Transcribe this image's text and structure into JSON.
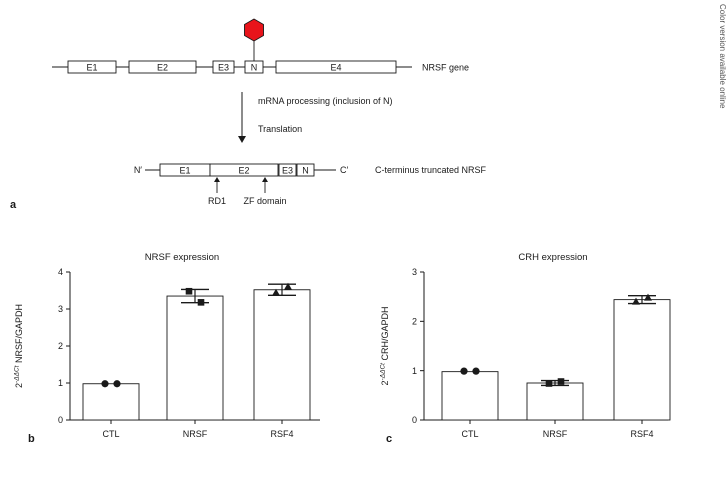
{
  "side_note": "Color version available online",
  "panel_a": {
    "label": "a",
    "gene": {
      "exons": [
        "E1",
        "E2",
        "E3",
        "N",
        "E4"
      ],
      "label": "NRSF gene",
      "marker_color": "#e8141b"
    },
    "steps": {
      "processing": "mRNA processing (inclusion of N)",
      "translation": "Translation"
    },
    "protein": {
      "n_term": "N′",
      "c_term": "C′",
      "exons": [
        "E1",
        "E2",
        "E3",
        "N"
      ],
      "label": "C-terminus truncated NRSF",
      "annotations": [
        "RD1",
        "ZF domain"
      ]
    }
  },
  "chart_data": [
    {
      "type": "bar",
      "panel": "b",
      "title": "NRSF expression",
      "ylabel": "2^-ΔΔCt NRSF/GAPDH",
      "ylabel_prefix": "2",
      "ylabel_sup": "-ΔΔCt",
      "ylabel_main": " NRSF/GAPDH",
      "categories": [
        "CTL",
        "NRSF",
        "RSF4"
      ],
      "values": [
        0.98,
        3.35,
        3.52
      ],
      "error": [
        0,
        0.18,
        0.15
      ],
      "points": [
        [
          0.98,
          0.98
        ],
        [
          3.48,
          3.18
        ],
        [
          3.44,
          3.6
        ]
      ],
      "markers": [
        "circle",
        "square",
        "triangle"
      ],
      "ylim": [
        0,
        4
      ],
      "yticks": [
        "0",
        "1",
        "2",
        "3",
        "4"
      ],
      "grid": false
    },
    {
      "type": "bar",
      "panel": "c",
      "title": "CRH expression",
      "ylabel": "2^-ΔΔCt CRH/GAPDH",
      "ylabel_prefix": "2",
      "ylabel_sup": "-ΔΔCt",
      "ylabel_main": " CRH/GAPDH",
      "categories": [
        "CTL",
        "NRSF",
        "RSF4"
      ],
      "values": [
        0.98,
        0.75,
        2.44
      ],
      "error": [
        0,
        0.05,
        0.08
      ],
      "points": [
        [
          0.99,
          0.99
        ],
        [
          0.74,
          0.78
        ],
        [
          2.4,
          2.48
        ]
      ],
      "markers": [
        "circle",
        "square",
        "triangle"
      ],
      "ylim": [
        0,
        3
      ],
      "yticks": [
        "0",
        "1",
        "2",
        "3"
      ],
      "grid": false
    }
  ]
}
